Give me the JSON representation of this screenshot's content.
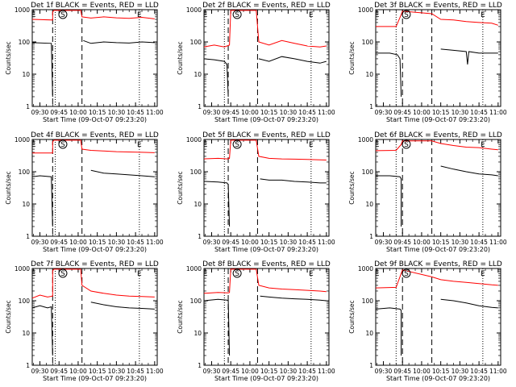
{
  "chart_data": {
    "type": "line",
    "y_scale": "log",
    "ylim": [
      1,
      1000
    ],
    "y_ticks": [
      "1",
      "10",
      "100",
      "1000"
    ],
    "xlim": [
      "09:24",
      "11:02"
    ],
    "x_ticks": [
      "09:30",
      "09:45",
      "10:00",
      "10:15",
      "10:30",
      "10:45",
      "11:00"
    ],
    "xlabel": "Start Time (09-Oct-07 09:23:20)",
    "ylabel": "Counts/sec",
    "colors": {
      "events": "#000000",
      "lld": "#ff0000"
    },
    "panels": [
      {
        "title": "Det 1f BLACK = Events, RED = LLD",
        "markers": [
          {
            "label": "E",
            "t": "09:25"
          },
          {
            "label": "S",
            "t": "09:48"
          },
          {
            "label": "E",
            "t": "10:48"
          }
        ],
        "dotted": [
          "09:42",
          "10:48"
        ],
        "dashed": [
          "09:40",
          "10:03"
        ],
        "series": [
          {
            "name": "Events",
            "t": [
              "09:24",
              "09:39",
              "09:39",
              "09:40",
              "10:02",
              "10:04",
              "10:10",
              "10:20",
              "10:30",
              "10:40",
              "10:50",
              "11:00"
            ],
            "v": [
              95,
              90,
              90,
              2,
              null,
              110,
              90,
              100,
              95,
              92,
              100,
              95
            ]
          },
          {
            "name": "LLD",
            "t": [
              "09:24",
              "09:40",
              "09:40",
              "09:41",
              "10:02",
              "10:03",
              "10:10",
              "10:20",
              "10:30",
              "10:40",
              "10:50",
              "11:00"
            ],
            "v": [
              500,
              480,
              850,
              950,
              950,
              600,
              550,
              600,
              560,
              540,
              580,
              520
            ]
          }
        ]
      },
      {
        "title": "Det 2f BLACK = Events, RED = LLD",
        "markers": [
          {
            "label": "E",
            "t": "09:25"
          },
          {
            "label": "S",
            "t": "09:50"
          },
          {
            "label": "E",
            "t": "10:48"
          }
        ],
        "dotted": [
          "09:40",
          "10:48"
        ],
        "dashed": [
          "09:43",
          "10:06"
        ],
        "series": [
          {
            "name": "Events",
            "t": [
              "09:24",
              "09:32",
              "09:40",
              "09:42",
              "09:43",
              "10:06",
              "10:07",
              "10:15",
              "10:25",
              "10:35",
              "10:45",
              "10:55",
              "11:00"
            ],
            "v": [
              30,
              28,
              25,
              20,
              2,
              null,
              30,
              25,
              35,
              30,
              25,
              22,
              25
            ]
          },
          {
            "name": "LLD",
            "t": [
              "09:24",
              "09:32",
              "09:40",
              "09:44",
              "09:45",
              "10:05",
              "10:07",
              "10:15",
              "10:25",
              "10:35",
              "10:45",
              "10:55",
              "11:00"
            ],
            "v": [
              70,
              80,
              70,
              80,
              950,
              950,
              100,
              80,
              110,
              90,
              75,
              70,
              75
            ]
          }
        ]
      },
      {
        "title": "Det 3f BLACK = Events, RED = LLD",
        "markers": [
          {
            "label": "E",
            "t": "09:25"
          },
          {
            "label": "S",
            "t": "09:48"
          },
          {
            "label": "E",
            "t": "10:48"
          }
        ],
        "dotted": [
          "09:40",
          "10:48"
        ],
        "dashed": [
          "09:45",
          "10:08"
        ],
        "series": [
          {
            "name": "Events",
            "t": [
              "09:24",
              "09:35",
              "09:41",
              "09:43",
              "09:44",
              "10:09",
              "10:15",
              "10:25",
              "10:35",
              "10:36",
              "10:37",
              "10:45",
              "11:00"
            ],
            "v": [
              45,
              45,
              40,
              30,
              2,
              null,
              60,
              55,
              50,
              20,
              50,
              45,
              45
            ]
          },
          {
            "name": "LLD",
            "t": [
              "09:24",
              "09:40",
              "09:44",
              "09:45",
              "10:08",
              "10:15",
              "10:25",
              "10:35",
              "10:45",
              "10:55",
              "11:00"
            ],
            "v": [
              300,
              300,
              700,
              900,
              750,
              500,
              480,
              430,
              400,
              380,
              330
            ]
          }
        ]
      },
      {
        "title": "Det 4f BLACK = Events, RED = LLD",
        "markers": [
          {
            "label": "E",
            "t": "09:25"
          },
          {
            "label": "S",
            "t": "09:48"
          },
          {
            "label": "E",
            "t": "10:48"
          }
        ],
        "dotted": [
          "09:42",
          "10:48"
        ],
        "dashed": [
          "09:40",
          "10:03"
        ],
        "series": [
          {
            "name": "Events",
            "t": [
              "09:24",
              "09:30",
              "09:39",
              "09:39",
              "09:40",
              "10:04",
              "10:10",
              "10:20",
              "10:30",
              "10:40",
              "10:50",
              "11:00"
            ],
            "v": [
              70,
              75,
              70,
              70,
              2,
              null,
              110,
              90,
              85,
              80,
              75,
              70
            ]
          },
          {
            "name": "LLD",
            "t": [
              "09:24",
              "09:40",
              "09:40",
              "09:41",
              "10:02",
              "10:03",
              "10:10",
              "10:20",
              "10:30",
              "10:40",
              "10:50",
              "11:00"
            ],
            "v": [
              380,
              380,
              850,
              950,
              950,
              500,
              460,
              440,
              420,
              410,
              400,
              390
            ]
          }
        ]
      },
      {
        "title": "Det 5f BLACK = Events, RED = LLD",
        "markers": [
          {
            "label": "E",
            "t": "09:25"
          },
          {
            "label": "S",
            "t": "09:50"
          },
          {
            "label": "E",
            "t": "10:48"
          }
        ],
        "dotted": [
          "09:40",
          "10:48"
        ],
        "dashed": [
          "09:43",
          "10:06"
        ],
        "series": [
          {
            "name": "Events",
            "t": [
              "09:24",
              "09:35",
              "09:42",
              "09:43",
              "09:44",
              "10:06",
              "10:08",
              "10:15",
              "10:25",
              "10:35",
              "10:45",
              "10:55",
              "11:00"
            ],
            "v": [
              50,
              48,
              45,
              40,
              2,
              null,
              60,
              55,
              55,
              50,
              48,
              45,
              45
            ]
          },
          {
            "name": "LLD",
            "t": [
              "09:24",
              "09:35",
              "09:43",
              "09:44",
              "09:45",
              "10:05",
              "10:07",
              "10:15",
              "10:25",
              "10:35",
              "10:45",
              "10:55",
              "11:00"
            ],
            "v": [
              250,
              260,
              250,
              260,
              950,
              950,
              300,
              260,
              250,
              245,
              240,
              235,
              230
            ]
          }
        ]
      },
      {
        "title": "Det 6f BLACK = Events, RED = LLD",
        "markers": [
          {
            "label": "E",
            "t": "09:25"
          },
          {
            "label": "S",
            "t": "09:48"
          },
          {
            "label": "E",
            "t": "10:48"
          }
        ],
        "dotted": [
          "09:40",
          "10:48"
        ],
        "dashed": [
          "09:45",
          "10:08"
        ],
        "series": [
          {
            "name": "Events",
            "t": [
              "09:24",
              "09:35",
              "09:43",
              "09:44",
              "09:44",
              "10:09",
              "10:15",
              "10:25",
              "10:35",
              "10:45",
              "10:55",
              "11:00"
            ],
            "v": [
              75,
              75,
              70,
              60,
              2,
              null,
              150,
              120,
              100,
              85,
              80,
              75
            ]
          },
          {
            "name": "LLD",
            "t": [
              "09:24",
              "09:40",
              "09:44",
              "09:45",
              "10:08",
              "10:15",
              "10:25",
              "10:35",
              "10:45",
              "10:55",
              "11:00"
            ],
            "v": [
              450,
              460,
              700,
              900,
              900,
              750,
              650,
              580,
              560,
              500,
              480
            ]
          }
        ]
      },
      {
        "title": "Det 7f BLACK = Events, RED = LLD",
        "markers": [
          {
            "label": "E",
            "t": "09:25"
          },
          {
            "label": "S",
            "t": "09:48"
          },
          {
            "label": "E",
            "t": "10:48"
          }
        ],
        "dotted": [
          "09:42",
          "10:48"
        ],
        "dashed": [
          "09:40",
          "10:03"
        ],
        "series": [
          {
            "name": "Events",
            "t": [
              "09:24",
              "09:30",
              "09:36",
              "09:39",
              "09:39",
              "09:40",
              "10:04",
              "10:10",
              "10:20",
              "10:30",
              "10:40",
              "10:50",
              "11:00"
            ],
            "v": [
              60,
              70,
              60,
              65,
              65,
              2,
              null,
              90,
              75,
              65,
              60,
              58,
              55
            ]
          },
          {
            "name": "LLD",
            "t": [
              "09:24",
              "09:30",
              "09:36",
              "09:40",
              "09:40",
              "09:41",
              "10:02",
              "10:03",
              "10:10",
              "10:20",
              "10:30",
              "10:40",
              "10:50",
              "11:00"
            ],
            "v": [
              120,
              150,
              130,
              140,
              850,
              950,
              950,
              300,
              200,
              170,
              150,
              140,
              135,
              130
            ]
          }
        ]
      },
      {
        "title": "Det 8f BLACK = Events, RED = LLD",
        "markers": [
          {
            "label": "E",
            "t": "09:25"
          },
          {
            "label": "S",
            "t": "09:50"
          },
          {
            "label": "E",
            "t": "10:48"
          }
        ],
        "dotted": [
          "09:40",
          "10:48"
        ],
        "dashed": [
          "09:43",
          "10:06"
        ],
        "series": [
          {
            "name": "Events",
            "t": [
              "09:24",
              "09:35",
              "09:42",
              "09:43",
              "09:44",
              "10:06",
              "10:08",
              "10:15",
              "10:25",
              "10:35",
              "10:45",
              "10:55",
              "11:00"
            ],
            "v": [
              100,
              110,
              105,
              100,
              2,
              null,
              140,
              130,
              120,
              115,
              110,
              105,
              100
            ]
          },
          {
            "name": "LLD",
            "t": [
              "09:24",
              "09:35",
              "09:43",
              "09:44",
              "09:45",
              "10:05",
              "10:07",
              "10:15",
              "10:25",
              "10:35",
              "10:45",
              "10:55",
              "11:00"
            ],
            "v": [
              170,
              180,
              175,
              180,
              950,
              950,
              300,
              250,
              230,
              220,
              210,
              200,
              190
            ]
          }
        ]
      },
      {
        "title": "Det 9f BLACK = Events, RED = LLD",
        "markers": [
          {
            "label": "E",
            "t": "09:25"
          },
          {
            "label": "S",
            "t": "09:48"
          },
          {
            "label": "E",
            "t": "10:48"
          }
        ],
        "dotted": [
          "09:40",
          "10:48"
        ],
        "dashed": [
          "09:45",
          "10:08"
        ],
        "series": [
          {
            "name": "Events",
            "t": [
              "09:24",
              "09:35",
              "09:43",
              "09:44",
              "09:44",
              "10:09",
              "10:15",
              "10:25",
              "10:35",
              "10:45",
              "10:55",
              "11:00"
            ],
            "v": [
              55,
              60,
              55,
              50,
              2,
              null,
              110,
              100,
              85,
              70,
              62,
              60
            ]
          },
          {
            "name": "LLD",
            "t": [
              "09:24",
              "09:40",
              "09:44",
              "09:45",
              "10:08",
              "10:15",
              "10:25",
              "10:35",
              "10:45",
              "10:55",
              "11:00"
            ],
            "v": [
              250,
              260,
              700,
              900,
              550,
              450,
              400,
              370,
              340,
              310,
              300
            ]
          }
        ]
      }
    ]
  }
}
